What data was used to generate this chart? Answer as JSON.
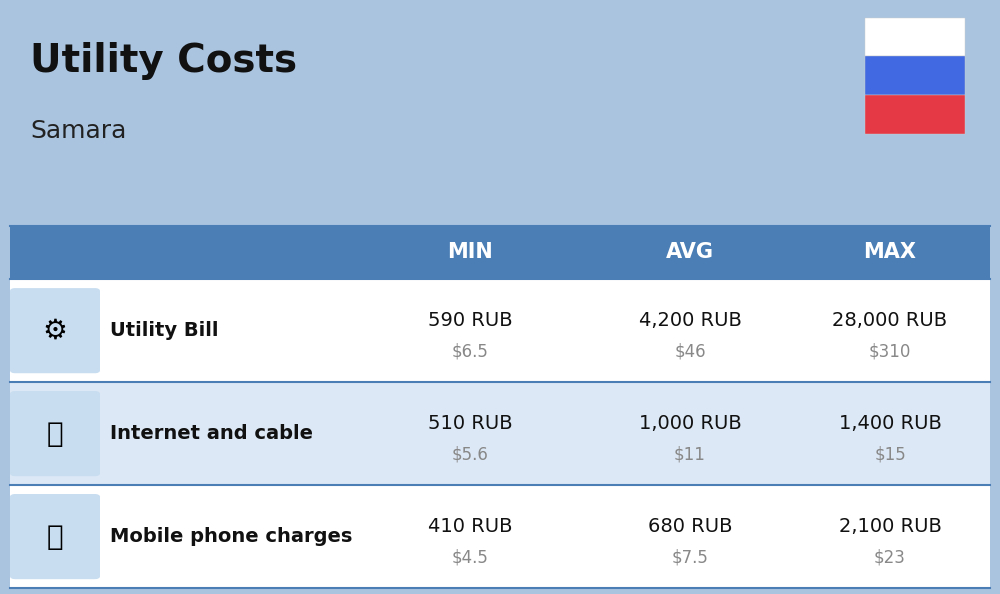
{
  "title": "Utility Costs",
  "subtitle": "Samara",
  "background_color": "#aac4e0",
  "header_bg_color": "#4a7eb5",
  "header_text_color": "#ffffff",
  "row_bg_color_1": "#ffffff",
  "row_bg_color_2": "#dce8f5",
  "row_separator_color": "#4a7eb5",
  "columns": [
    "",
    "",
    "MIN",
    "AVG",
    "MAX"
  ],
  "rows": [
    {
      "label": "Utility Bill",
      "min_rub": "590 RUB",
      "min_usd": "$6.5",
      "avg_rub": "4,200 RUB",
      "avg_usd": "$46",
      "max_rub": "28,000 RUB",
      "max_usd": "$310"
    },
    {
      "label": "Internet and cable",
      "min_rub": "510 RUB",
      "min_usd": "$5.6",
      "avg_rub": "1,000 RUB",
      "avg_usd": "$11",
      "max_rub": "1,400 RUB",
      "max_usd": "$15"
    },
    {
      "label": "Mobile phone charges",
      "min_rub": "410 RUB",
      "min_usd": "$4.5",
      "avg_rub": "680 RUB",
      "avg_usd": "$7.5",
      "max_rub": "2,100 RUB",
      "max_usd": "$23"
    }
  ],
  "flag_colors": [
    "#ffffff",
    "#4169e1",
    "#e63946"
  ],
  "title_fontsize": 28,
  "subtitle_fontsize": 18,
  "header_fontsize": 15,
  "label_fontsize": 14,
  "value_fontsize": 14,
  "usd_fontsize": 12
}
